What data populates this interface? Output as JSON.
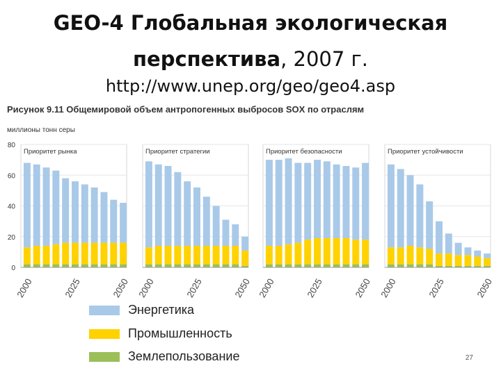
{
  "slide": {
    "title_line1": "GEO-4 Глобальная экологическая",
    "title_line2_bold": "перспектива",
    "title_line2_rest": ", 2007 г.",
    "url": "http://www.unep.org/geo/geo4.asp",
    "page_number": "27"
  },
  "chart_data": {
    "type": "bar",
    "stacked": true,
    "title": "Рисунок 9.11 Общемировой объем антропогенных выбросов SOX по отраслям",
    "ylabel": "миллионы тонн серы",
    "ylim": [
      0,
      80
    ],
    "y_ticks": [
      "0",
      "20",
      "40",
      "60",
      "80"
    ],
    "x_ticks": [
      "2000",
      "2025",
      "2050"
    ],
    "categories": [
      "2000",
      "2005",
      "2010",
      "2015",
      "2020",
      "2025",
      "2030",
      "2035",
      "2040",
      "2045",
      "2050"
    ],
    "legend": [
      {
        "name": "Энергетика",
        "color": "#a9c9e8"
      },
      {
        "name": "Промышленность",
        "color": "#ffd200"
      },
      {
        "name": "Землепользование",
        "color": "#9cbf57"
      }
    ],
    "panels": [
      {
        "title": "Приоритет рынка",
        "series": [
          {
            "name": "Землепользование",
            "values": [
              2,
              2,
              2,
              2,
              2,
              2,
              2,
              2,
              2,
              2,
              2
            ]
          },
          {
            "name": "Промышленность",
            "values": [
              11,
              12,
              12,
              13,
              14,
              14,
              14,
              14,
              14,
              14,
              14
            ]
          },
          {
            "name": "Энергетика",
            "values": [
              55,
              53,
              51,
              48,
              42,
              40,
              38,
              36,
              33,
              28,
              26
            ]
          }
        ]
      },
      {
        "title": "Приоритет стратегии",
        "series": [
          {
            "name": "Землепользование",
            "values": [
              2,
              2,
              2,
              2,
              2,
              2,
              2,
              2,
              2,
              2,
              1
            ]
          },
          {
            "name": "Промышленность",
            "values": [
              11,
              12,
              12,
              12,
              12,
              12,
              12,
              12,
              12,
              12,
              10
            ]
          },
          {
            "name": "Энергетика",
            "values": [
              56,
              53,
              52,
              48,
              42,
              38,
              32,
              26,
              17,
              14,
              9
            ]
          }
        ]
      },
      {
        "title": "Приоритет безопасности",
        "series": [
          {
            "name": "Землепользование",
            "values": [
              2,
              2,
              2,
              2,
              2,
              2,
              2,
              2,
              2,
              2,
              2
            ]
          },
          {
            "name": "Промышленность",
            "values": [
              12,
              12,
              13,
              14,
              16,
              17,
              17,
              17,
              17,
              16,
              16
            ]
          },
          {
            "name": "Энергетика",
            "values": [
              56,
              56,
              56,
              52,
              50,
              51,
              50,
              48,
              47,
              47,
              50
            ]
          }
        ]
      },
      {
        "title": "Приоритет устойчивости",
        "series": [
          {
            "name": "Землепользование",
            "values": [
              2,
              2,
              2,
              2,
              2,
              1,
              1,
              1,
              1,
              1,
              1
            ]
          },
          {
            "name": "Промышленность",
            "values": [
              11,
              11,
              12,
              11,
              10,
              8,
              8,
              7,
              7,
              6,
              5
            ]
          },
          {
            "name": "Энергетика",
            "values": [
              54,
              51,
              46,
              41,
              31,
              21,
              13,
              8,
              5,
              4,
              3
            ]
          }
        ]
      }
    ]
  }
}
